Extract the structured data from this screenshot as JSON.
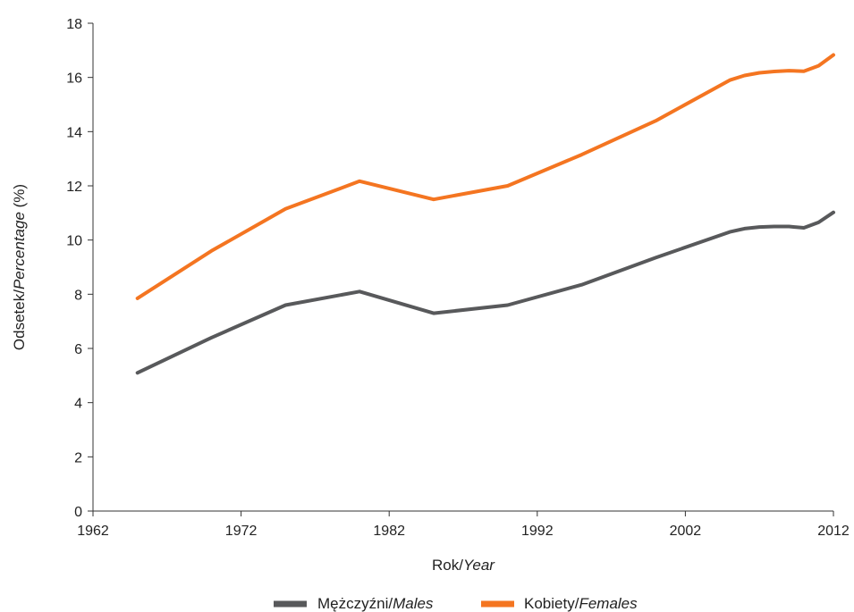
{
  "chart_data": {
    "type": "line",
    "title": "",
    "xlabel": {
      "main": "Rok/",
      "italic": "Year"
    },
    "ylabel": {
      "main": "Odsetek/",
      "italic": "Percentage",
      "suffix": " (%)"
    },
    "xlim": [
      1962,
      2012
    ],
    "ylim": [
      0,
      18
    ],
    "xticks": [
      1962,
      1972,
      1982,
      1992,
      2002,
      2012
    ],
    "yticks": [
      0,
      2,
      4,
      6,
      8,
      10,
      12,
      14,
      16,
      18
    ],
    "grid": false,
    "legend_position": "bottom-center",
    "series": [
      {
        "name": "Mężczyźni/",
        "name_italic": "Males",
        "color": "#58595b",
        "points": [
          [
            1965,
            5.1
          ],
          [
            1970,
            6.4
          ],
          [
            1975,
            7.6
          ],
          [
            1980,
            8.1
          ],
          [
            1985,
            7.3
          ],
          [
            1990,
            7.6
          ],
          [
            1995,
            8.35
          ],
          [
            2000,
            9.35
          ],
          [
            2005,
            10.3
          ],
          [
            2006,
            10.42
          ],
          [
            2007,
            10.48
          ],
          [
            2008,
            10.5
          ],
          [
            2009,
            10.5
          ],
          [
            2010,
            10.45
          ],
          [
            2011,
            10.65
          ],
          [
            2012,
            11.02
          ]
        ]
      },
      {
        "name": "Kobiety/",
        "name_italic": "Females",
        "color": "#f47521",
        "points": [
          [
            1965,
            7.85
          ],
          [
            1970,
            9.6
          ],
          [
            1975,
            11.15
          ],
          [
            1980,
            12.17
          ],
          [
            1985,
            11.5
          ],
          [
            1990,
            12.0
          ],
          [
            1995,
            13.15
          ],
          [
            2000,
            14.4
          ],
          [
            2005,
            15.9
          ],
          [
            2006,
            16.07
          ],
          [
            2007,
            16.17
          ],
          [
            2008,
            16.22
          ],
          [
            2009,
            16.25
          ],
          [
            2010,
            16.23
          ],
          [
            2011,
            16.43
          ],
          [
            2012,
            16.83
          ]
        ]
      }
    ]
  }
}
